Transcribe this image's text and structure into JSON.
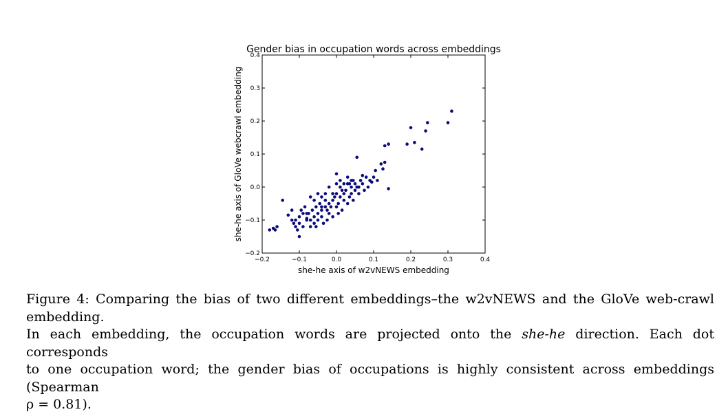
{
  "chart_data": {
    "type": "scatter",
    "title": "Gender bias in occupation words across embeddings",
    "xlabel": "she-he axis of w2vNEWS embedding",
    "ylabel": "she-he axis of GloVe webcrawl embedding",
    "xlim": [
      -0.2,
      0.4
    ],
    "ylim": [
      -0.2,
      0.4
    ],
    "xticks": [
      "−0.2",
      "−0.1",
      "0.0",
      "0.1",
      "0.2",
      "0.3",
      "0.4"
    ],
    "yticks": [
      "−0.2",
      "−0.1",
      "0.0",
      "0.1",
      "0.2",
      "0.3",
      "0.4"
    ],
    "grid": false,
    "marker_color": "#0b0b7a",
    "points": [
      [
        -0.18,
        -0.13
      ],
      [
        -0.17,
        -0.125
      ],
      [
        -0.165,
        -0.13
      ],
      [
        -0.16,
        -0.12
      ],
      [
        -0.145,
        -0.04
      ],
      [
        -0.13,
        -0.085
      ],
      [
        -0.12,
        -0.07
      ],
      [
        -0.12,
        -0.1
      ],
      [
        -0.115,
        -0.11
      ],
      [
        -0.11,
        -0.1
      ],
      [
        -0.11,
        -0.12
      ],
      [
        -0.105,
        -0.13
      ],
      [
        -0.1,
        -0.15
      ],
      [
        -0.1,
        -0.11
      ],
      [
        -0.1,
        -0.09
      ],
      [
        -0.09,
        -0.12
      ],
      [
        -0.085,
        -0.06
      ],
      [
        -0.08,
        -0.095
      ],
      [
        -0.08,
        -0.1
      ],
      [
        -0.075,
        -0.08
      ],
      [
        -0.07,
        -0.1
      ],
      [
        -0.07,
        -0.12
      ],
      [
        -0.065,
        -0.07
      ],
      [
        -0.06,
        -0.09
      ],
      [
        -0.055,
        -0.06
      ],
      [
        -0.055,
        -0.12
      ],
      [
        -0.05,
        -0.08
      ],
      [
        -0.05,
        -0.1
      ],
      [
        -0.045,
        -0.05
      ],
      [
        -0.04,
        -0.09
      ],
      [
        -0.04,
        -0.07
      ],
      [
        -0.035,
        -0.11
      ],
      [
        -0.03,
        -0.04
      ],
      [
        -0.03,
        -0.06
      ],
      [
        -0.025,
        -0.1
      ],
      [
        -0.02,
        -0.08
      ],
      [
        -0.02,
        -0.05
      ],
      [
        -0.015,
        -0.06
      ],
      [
        -0.01,
        -0.09
      ],
      [
        -0.01,
        -0.04
      ],
      [
        -0.005,
        -0.03
      ],
      [
        0.0,
        -0.06
      ],
      [
        0.0,
        -0.02
      ],
      [
        0.005,
        -0.08
      ],
      [
        0.005,
        -0.05
      ],
      [
        0.01,
        -0.03
      ],
      [
        0.01,
        0.0
      ],
      [
        0.015,
        -0.07
      ],
      [
        0.02,
        -0.04
      ],
      [
        0.02,
        -0.02
      ],
      [
        0.025,
        -0.01
      ],
      [
        0.03,
        -0.05
      ],
      [
        0.03,
        0.01
      ],
      [
        0.035,
        -0.03
      ],
      [
        0.04,
        0.0
      ],
      [
        0.04,
        -0.02
      ],
      [
        0.045,
        0.02
      ],
      [
        0.05,
        -0.01
      ],
      [
        0.05,
        0.01
      ],
      [
        0.055,
        0.0
      ],
      [
        0.06,
        -0.02
      ],
      [
        0.065,
        0.02
      ],
      [
        0.07,
        0.01
      ],
      [
        0.075,
        -0.01
      ],
      [
        0.08,
        0.03
      ],
      [
        0.085,
        0.0
      ],
      [
        0.09,
        0.02
      ],
      [
        0.095,
        0.015
      ],
      [
        0.1,
        0.03
      ],
      [
        0.105,
        0.05
      ],
      [
        -0.07,
        -0.03
      ],
      [
        -0.06,
        -0.04
      ],
      [
        -0.05,
        -0.02
      ],
      [
        -0.04,
        -0.06
      ],
      [
        -0.03,
        -0.02
      ],
      [
        -0.02,
        0.0
      ],
      [
        -0.01,
        -0.02
      ],
      [
        0.0,
        0.01
      ],
      [
        0.01,
        0.02
      ],
      [
        0.02,
        0.01
      ],
      [
        0.03,
        0.03
      ],
      [
        0.04,
        0.02
      ],
      [
        0.0,
        0.04
      ],
      [
        -0.09,
        -0.08
      ],
      [
        -0.06,
        -0.11
      ],
      [
        -0.04,
        -0.03
      ],
      [
        -0.025,
        -0.07
      ],
      [
        0.015,
        -0.01
      ],
      [
        0.035,
        0.01
      ],
      [
        0.045,
        -0.04
      ],
      [
        0.06,
        0.0
      ],
      [
        0.07,
        0.035
      ],
      [
        0.12,
        0.07
      ],
      [
        0.125,
        0.055
      ],
      [
        0.13,
        0.075
      ],
      [
        0.14,
        -0.005
      ],
      [
        0.11,
        0.02
      ],
      [
        0.13,
        0.125
      ],
      [
        0.14,
        0.13
      ],
      [
        0.19,
        0.13
      ],
      [
        0.21,
        0.135
      ],
      [
        0.23,
        0.115
      ],
      [
        0.2,
        0.18
      ],
      [
        0.24,
        0.17
      ],
      [
        0.245,
        0.195
      ],
      [
        0.3,
        0.195
      ],
      [
        0.31,
        0.23
      ],
      [
        0.055,
        0.09
      ],
      [
        -0.08,
        -0.08
      ],
      [
        -0.095,
        -0.07
      ]
    ]
  },
  "caption": {
    "label": "Figure 4:",
    "line1": "Comparing the bias of two different embeddings–the w2vNEWS and the GloVe web-crawl embedding.",
    "line2_pre": "In each embedding, the occupation words are projected onto the",
    "line2_em": "she-he",
    "line2_post": "direction. Each dot corresponds",
    "line3": "to one occupation word; the gender bias of occupations is highly consistent across embeddings (Spearman",
    "rho": "ρ = 0.81)."
  }
}
